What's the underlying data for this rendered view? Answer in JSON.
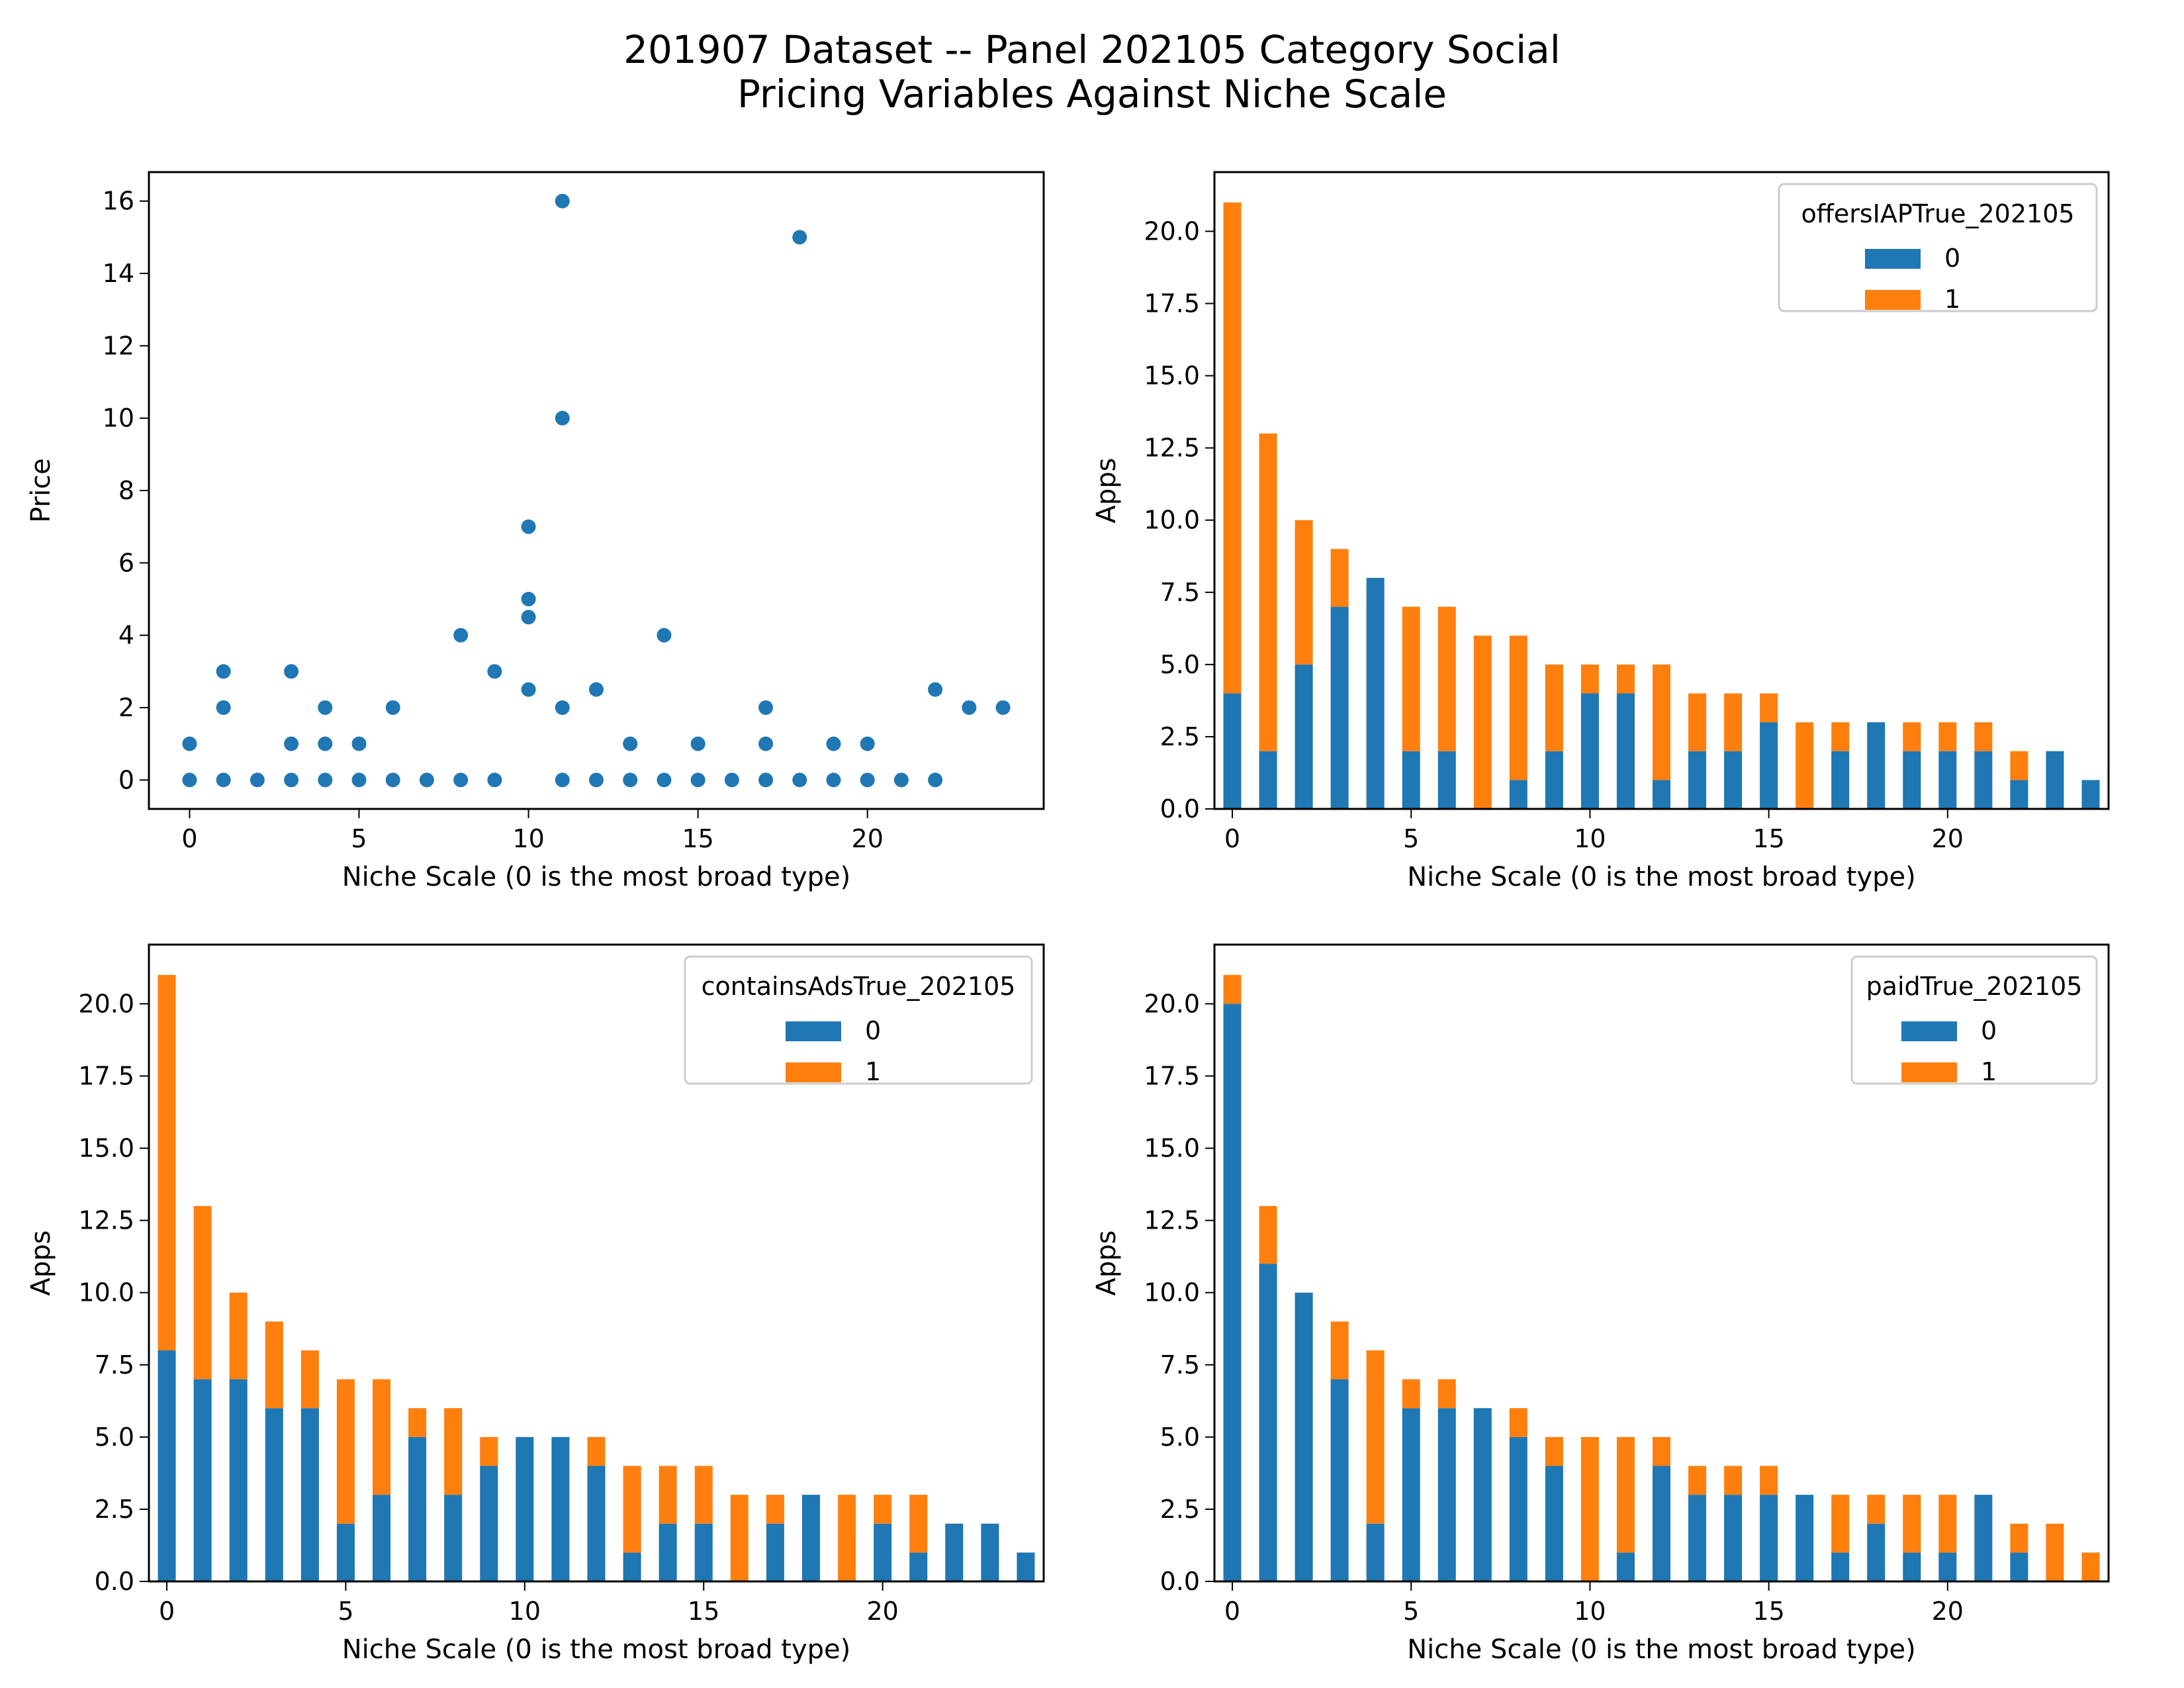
{
  "figure": {
    "title_line1": "201907 Dataset -- Panel 202105 Category Social",
    "title_line2": "Pricing Variables Against Niche Scale"
  },
  "colors": {
    "series0": "#1f77b4",
    "series1": "#ff7f0e",
    "axes": "#000000",
    "background": "#ffffff"
  },
  "chart_data": [
    {
      "type": "scatter",
      "xlabel": "Niche Scale (0 is the most broad type)",
      "ylabel": "Price",
      "xlim": [
        -1.2,
        25.2
      ],
      "ylim": [
        -0.8,
        16.8
      ],
      "xticks": [
        0,
        5,
        10,
        15,
        20
      ],
      "yticks": [
        0,
        2,
        4,
        6,
        8,
        10,
        12,
        14,
        16
      ],
      "grid": false,
      "points": [
        [
          0,
          0
        ],
        [
          0,
          1
        ],
        [
          1,
          0
        ],
        [
          1,
          2
        ],
        [
          1,
          3
        ],
        [
          2,
          0
        ],
        [
          3,
          0
        ],
        [
          3,
          1
        ],
        [
          3,
          3
        ],
        [
          4,
          0
        ],
        [
          4,
          1
        ],
        [
          4,
          2
        ],
        [
          5,
          0
        ],
        [
          5,
          1
        ],
        [
          6,
          0
        ],
        [
          6,
          2
        ],
        [
          7,
          0
        ],
        [
          8,
          0
        ],
        [
          8,
          4
        ],
        [
          9,
          0
        ],
        [
          9,
          3
        ],
        [
          10,
          2.5
        ],
        [
          10,
          4.5
        ],
        [
          10,
          5
        ],
        [
          10,
          7
        ],
        [
          11,
          0
        ],
        [
          11,
          2
        ],
        [
          11,
          10
        ],
        [
          11,
          16
        ],
        [
          12,
          0
        ],
        [
          12,
          2.5
        ],
        [
          13,
          0
        ],
        [
          13,
          1
        ],
        [
          14,
          0
        ],
        [
          14,
          4
        ],
        [
          15,
          0
        ],
        [
          15,
          1
        ],
        [
          16,
          0
        ],
        [
          17,
          0
        ],
        [
          17,
          1
        ],
        [
          17,
          2
        ],
        [
          18,
          0
        ],
        [
          18,
          15
        ],
        [
          19,
          0
        ],
        [
          19,
          1
        ],
        [
          20,
          0
        ],
        [
          20,
          1
        ],
        [
          21,
          0
        ],
        [
          22,
          0
        ],
        [
          22,
          2.5
        ],
        [
          23,
          2
        ],
        [
          24,
          2
        ]
      ]
    },
    {
      "type": "bar",
      "stacked": true,
      "xlabel": "Niche Scale (0 is the most broad type)",
      "ylabel": "Apps",
      "legend_title": "offersIAPTrue_202105",
      "legend_position": "top-right",
      "categories": [
        0,
        1,
        2,
        3,
        4,
        5,
        6,
        7,
        8,
        9,
        10,
        11,
        12,
        13,
        14,
        15,
        16,
        17,
        18,
        19,
        20,
        21,
        22,
        23,
        24
      ],
      "xticks": [
        0,
        5,
        10,
        15,
        20
      ],
      "yticks": [
        "0.0",
        "2.5",
        "5.0",
        "7.5",
        "10.0",
        "12.5",
        "15.0",
        "17.5",
        "20.0"
      ],
      "ylim": [
        0,
        22.05
      ],
      "series": [
        {
          "name": "0",
          "values": [
            4,
            2,
            5,
            7,
            8,
            2,
            2,
            0,
            1,
            2,
            4,
            4,
            1,
            2,
            2,
            3,
            0,
            2,
            3,
            2,
            2,
            2,
            1,
            2,
            1
          ]
        },
        {
          "name": "1",
          "values": [
            17,
            11,
            5,
            2,
            0,
            5,
            5,
            6,
            5,
            3,
            1,
            1,
            4,
            2,
            2,
            1,
            3,
            1,
            0,
            1,
            1,
            1,
            1,
            0,
            0
          ]
        }
      ]
    },
    {
      "type": "bar",
      "stacked": true,
      "xlabel": "Niche Scale (0 is the most broad type)",
      "ylabel": "Apps",
      "legend_title": "containsAdsTrue_202105",
      "legend_position": "top-right",
      "categories": [
        0,
        1,
        2,
        3,
        4,
        5,
        6,
        7,
        8,
        9,
        10,
        11,
        12,
        13,
        14,
        15,
        16,
        17,
        18,
        19,
        20,
        21,
        22,
        23,
        24
      ],
      "xticks": [
        0,
        5,
        10,
        15,
        20
      ],
      "yticks": [
        "0.0",
        "2.5",
        "5.0",
        "7.5",
        "10.0",
        "12.5",
        "15.0",
        "17.5",
        "20.0"
      ],
      "ylim": [
        0,
        22.05
      ],
      "series": [
        {
          "name": "0",
          "values": [
            8,
            7,
            7,
            6,
            6,
            2,
            3,
            5,
            3,
            4,
            5,
            5,
            4,
            1,
            2,
            2,
            0,
            2,
            3,
            0,
            2,
            1,
            2,
            2,
            1
          ]
        },
        {
          "name": "1",
          "values": [
            13,
            6,
            3,
            3,
            2,
            5,
            4,
            1,
            3,
            1,
            0,
            0,
            1,
            3,
            2,
            2,
            3,
            1,
            0,
            3,
            1,
            2,
            0,
            0,
            0
          ]
        }
      ]
    },
    {
      "type": "bar",
      "stacked": true,
      "xlabel": "Niche Scale (0 is the most broad type)",
      "ylabel": "Apps",
      "legend_title": "paidTrue_202105",
      "legend_position": "top-right",
      "categories": [
        0,
        1,
        2,
        3,
        4,
        5,
        6,
        7,
        8,
        9,
        10,
        11,
        12,
        13,
        14,
        15,
        16,
        17,
        18,
        19,
        20,
        21,
        22,
        23,
        24
      ],
      "xticks": [
        0,
        5,
        10,
        15,
        20
      ],
      "yticks": [
        "0.0",
        "2.5",
        "5.0",
        "7.5",
        "10.0",
        "12.5",
        "15.0",
        "17.5",
        "20.0"
      ],
      "ylim": [
        0,
        22.05
      ],
      "series": [
        {
          "name": "0",
          "values": [
            20,
            11,
            10,
            7,
            2,
            6,
            6,
            6,
            5,
            4,
            0,
            1,
            4,
            3,
            3,
            3,
            3,
            1,
            2,
            1,
            1,
            3,
            1,
            0,
            0
          ]
        },
        {
          "name": "1",
          "values": [
            1,
            2,
            0,
            2,
            6,
            1,
            1,
            0,
            1,
            1,
            5,
            4,
            1,
            1,
            1,
            1,
            0,
            2,
            1,
            2,
            2,
            0,
            1,
            2,
            1
          ]
        }
      ]
    }
  ]
}
